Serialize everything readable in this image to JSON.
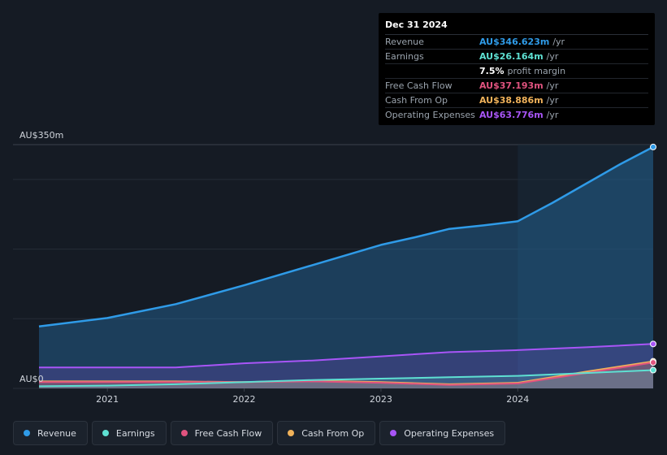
{
  "tooltip": {
    "date": "Dec 31 2024",
    "rows": [
      {
        "label": "Revenue",
        "value": "AU$346.623m",
        "unit": "/yr",
        "color": "#2f9be8"
      },
      {
        "label": "Earnings",
        "value": "AU$26.164m",
        "unit": "/yr",
        "color": "#5ee0d2"
      },
      {
        "label": "",
        "value": "7.5%",
        "unit": "profit margin",
        "color": "#ffffff"
      },
      {
        "label": "Free Cash Flow",
        "value": "AU$37.193m",
        "unit": "/yr",
        "color": "#e0537f"
      },
      {
        "label": "Cash From Op",
        "value": "AU$38.886m",
        "unit": "/yr",
        "color": "#f0b25a"
      },
      {
        "label": "Operating Expenses",
        "value": "AU$63.776m",
        "unit": "/yr",
        "color": "#a855f7"
      }
    ]
  },
  "legend": [
    {
      "label": "Revenue",
      "color": "#2f9be8"
    },
    {
      "label": "Earnings",
      "color": "#5ee0d2"
    },
    {
      "label": "Free Cash Flow",
      "color": "#e0537f"
    },
    {
      "label": "Cash From Op",
      "color": "#f0b25a"
    },
    {
      "label": "Operating Expenses",
      "color": "#a855f7"
    }
  ],
  "chart_data": {
    "type": "area",
    "title": "",
    "ylabel_top": "AU$350m",
    "ylabel_bottom": "AU$0",
    "ylim": [
      0,
      350
    ],
    "xlim": [
      2020.5,
      2025.0
    ],
    "x_ticks": [
      "2021",
      "2022",
      "2023",
      "2024"
    ],
    "highlight_from": 2024.0,
    "series": [
      {
        "name": "Revenue",
        "color": "#2f9be8",
        "points": [
          [
            2020.5,
            89
          ],
          [
            2021.0,
            101
          ],
          [
            2021.5,
            121
          ],
          [
            2022.0,
            148
          ],
          [
            2022.5,
            177
          ],
          [
            2023.0,
            206
          ],
          [
            2023.25,
            217
          ],
          [
            2023.5,
            229
          ],
          [
            2023.75,
            234
          ],
          [
            2024.0,
            240
          ],
          [
            2024.25,
            266
          ],
          [
            2024.5,
            294
          ],
          [
            2024.75,
            322
          ],
          [
            2024.99,
            346.6
          ]
        ]
      },
      {
        "name": "Operating Expenses",
        "color": "#a855f7",
        "points": [
          [
            2020.5,
            30
          ],
          [
            2021.0,
            30
          ],
          [
            2021.5,
            30
          ],
          [
            2022.0,
            36
          ],
          [
            2022.5,
            40
          ],
          [
            2023.0,
            46
          ],
          [
            2023.5,
            52
          ],
          [
            2024.0,
            55
          ],
          [
            2024.5,
            59
          ],
          [
            2024.99,
            63.8
          ]
        ]
      },
      {
        "name": "Cash From Op",
        "color": "#f0b25a",
        "points": [
          [
            2020.5,
            10
          ],
          [
            2021.0,
            10
          ],
          [
            2021.5,
            10
          ],
          [
            2022.0,
            9
          ],
          [
            2022.5,
            11
          ],
          [
            2023.0,
            9
          ],
          [
            2023.5,
            6
          ],
          [
            2024.0,
            8
          ],
          [
            2024.5,
            24
          ],
          [
            2024.99,
            38.9
          ]
        ]
      },
      {
        "name": "Free Cash Flow",
        "color": "#e0537f",
        "points": [
          [
            2020.5,
            9
          ],
          [
            2021.0,
            9
          ],
          [
            2021.5,
            9
          ],
          [
            2022.0,
            9
          ],
          [
            2022.5,
            10
          ],
          [
            2023.0,
            8
          ],
          [
            2023.5,
            5
          ],
          [
            2024.0,
            7
          ],
          [
            2024.5,
            22
          ],
          [
            2024.99,
            37.2
          ]
        ]
      },
      {
        "name": "Earnings",
        "color": "#5ee0d2",
        "points": [
          [
            2020.5,
            3
          ],
          [
            2021.0,
            4
          ],
          [
            2021.5,
            6
          ],
          [
            2022.0,
            9
          ],
          [
            2022.5,
            12
          ],
          [
            2023.0,
            14
          ],
          [
            2023.5,
            16
          ],
          [
            2024.0,
            18
          ],
          [
            2024.5,
            22
          ],
          [
            2024.99,
            26.2
          ]
        ]
      }
    ]
  }
}
